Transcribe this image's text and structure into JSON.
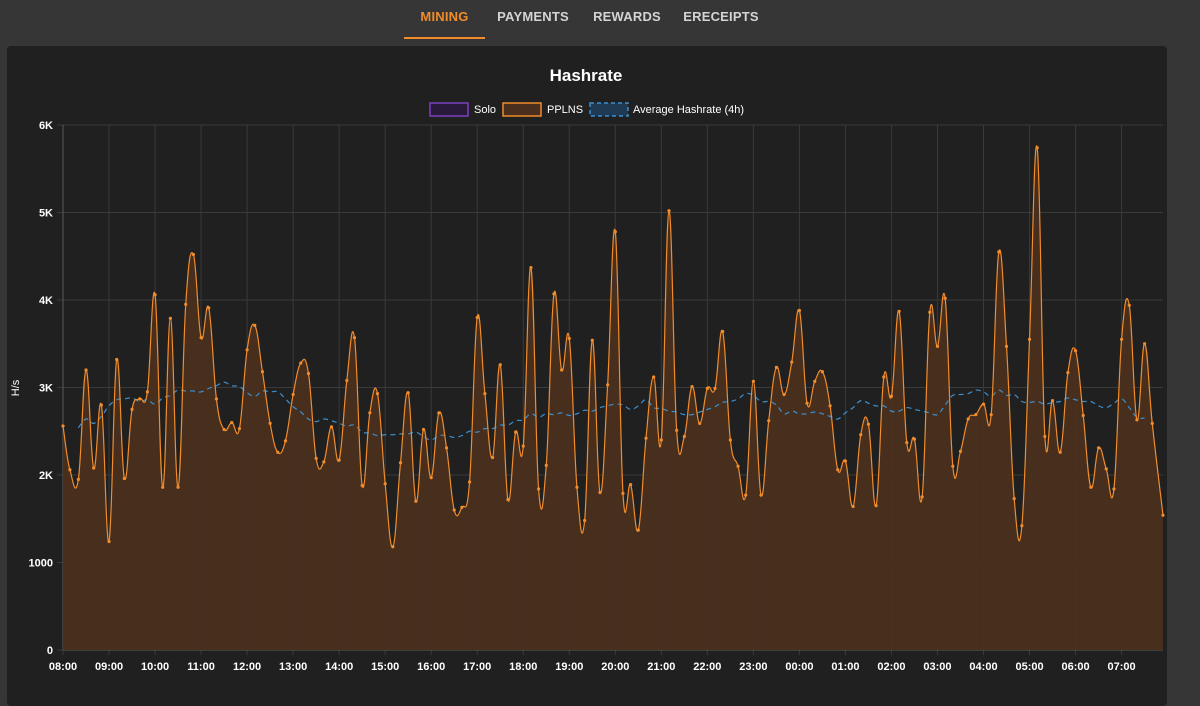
{
  "tabs": [
    {
      "label": "MINING",
      "active": true
    },
    {
      "label": "PAYMENTS",
      "active": false
    },
    {
      "label": "REWARDS",
      "active": false
    },
    {
      "label": "ERECEIPTS",
      "active": false
    }
  ],
  "colors": {
    "accent": "#f08c2c",
    "solo": "#7a3fbf",
    "pplns_line": "#f08c2c",
    "pplns_fill": "#4a2f1e",
    "average": "#3a8fd0"
  },
  "chart_data": {
    "type": "area",
    "title": "Hashrate",
    "ylabel": "H/s",
    "xlabel": "",
    "ylim": [
      0,
      6000
    ],
    "y_ticks": [
      {
        "value": 0,
        "label": "0"
      },
      {
        "value": 1000,
        "label": "1000"
      },
      {
        "value": 2000,
        "label": "2K"
      },
      {
        "value": 3000,
        "label": "3K"
      },
      {
        "value": 4000,
        "label": "4K"
      },
      {
        "value": 5000,
        "label": "5K"
      },
      {
        "value": 6000,
        "label": "6K"
      }
    ],
    "xlim": [
      0,
      1434
    ],
    "x_ticks": [
      {
        "value": 0,
        "label": "08:00"
      },
      {
        "value": 60,
        "label": "09:00"
      },
      {
        "value": 120,
        "label": "10:00"
      },
      {
        "value": 180,
        "label": "11:00"
      },
      {
        "value": 240,
        "label": "12:00"
      },
      {
        "value": 300,
        "label": "13:00"
      },
      {
        "value": 360,
        "label": "14:00"
      },
      {
        "value": 420,
        "label": "15:00"
      },
      {
        "value": 480,
        "label": "16:00"
      },
      {
        "value": 540,
        "label": "17:00"
      },
      {
        "value": 600,
        "label": "18:00"
      },
      {
        "value": 660,
        "label": "19:00"
      },
      {
        "value": 720,
        "label": "20:00"
      },
      {
        "value": 780,
        "label": "21:00"
      },
      {
        "value": 840,
        "label": "22:00"
      },
      {
        "value": 900,
        "label": "23:00"
      },
      {
        "value": 960,
        "label": "00:00"
      },
      {
        "value": 1020,
        "label": "01:00"
      },
      {
        "value": 1080,
        "label": "02:00"
      },
      {
        "value": 1140,
        "label": "03:00"
      },
      {
        "value": 1200,
        "label": "04:00"
      },
      {
        "value": 1260,
        "label": "05:00"
      },
      {
        "value": 1320,
        "label": "06:00"
      },
      {
        "value": 1380,
        "label": "07:00"
      }
    ],
    "grid": true,
    "legend_position": "top",
    "series": [
      {
        "name": "Solo",
        "color": "#7a3fbf",
        "points": []
      },
      {
        "name": "PPLNS",
        "color": "#f08c2c",
        "points": [
          [
            0,
            2560
          ],
          [
            9,
            2060
          ],
          [
            20,
            1950
          ],
          [
            30,
            3200
          ],
          [
            40,
            2080
          ],
          [
            50,
            2800
          ],
          [
            60,
            1240
          ],
          [
            70,
            3320
          ],
          [
            80,
            1960
          ],
          [
            90,
            2750
          ],
          [
            100,
            2870
          ],
          [
            110,
            2950
          ],
          [
            120,
            4060
          ],
          [
            130,
            1860
          ],
          [
            140,
            3790
          ],
          [
            150,
            1860
          ],
          [
            160,
            3950
          ],
          [
            170,
            4520
          ],
          [
            180,
            3570
          ],
          [
            190,
            3910
          ],
          [
            200,
            2870
          ],
          [
            210,
            2520
          ],
          [
            220,
            2600
          ],
          [
            230,
            2530
          ],
          [
            240,
            3430
          ],
          [
            250,
            3710
          ],
          [
            260,
            3180
          ],
          [
            270,
            2590
          ],
          [
            280,
            2260
          ],
          [
            290,
            2390
          ],
          [
            300,
            2920
          ],
          [
            310,
            3280
          ],
          [
            320,
            3160
          ],
          [
            330,
            2190
          ],
          [
            340,
            2150
          ],
          [
            350,
            2550
          ],
          [
            360,
            2170
          ],
          [
            370,
            3080
          ],
          [
            380,
            3570
          ],
          [
            390,
            1880
          ],
          [
            400,
            2710
          ],
          [
            410,
            2930
          ],
          [
            420,
            1900
          ],
          [
            430,
            1180
          ],
          [
            440,
            2140
          ],
          [
            450,
            2940
          ],
          [
            460,
            1700
          ],
          [
            470,
            2520
          ],
          [
            480,
            1970
          ],
          [
            490,
            2710
          ],
          [
            500,
            2310
          ],
          [
            510,
            1600
          ],
          [
            520,
            1630
          ],
          [
            530,
            1920
          ],
          [
            540,
            3800
          ],
          [
            550,
            2930
          ],
          [
            560,
            2200
          ],
          [
            570,
            3260
          ],
          [
            580,
            1720
          ],
          [
            590,
            2490
          ],
          [
            600,
            2330
          ],
          [
            610,
            4370
          ],
          [
            620,
            1840
          ],
          [
            630,
            2110
          ],
          [
            640,
            4070
          ],
          [
            650,
            3200
          ],
          [
            660,
            3560
          ],
          [
            670,
            1860
          ],
          [
            680,
            1480
          ],
          [
            690,
            3540
          ],
          [
            700,
            1800
          ],
          [
            710,
            3030
          ],
          [
            720,
            4780
          ],
          [
            730,
            1790
          ],
          [
            740,
            1890
          ],
          [
            750,
            1370
          ],
          [
            760,
            2420
          ],
          [
            770,
            3120
          ],
          [
            780,
            2400
          ],
          [
            790,
            5020
          ],
          [
            800,
            2510
          ],
          [
            810,
            2440
          ],
          [
            820,
            3010
          ],
          [
            830,
            2590
          ],
          [
            840,
            2990
          ],
          [
            850,
            2990
          ],
          [
            860,
            3640
          ],
          [
            870,
            2400
          ],
          [
            880,
            2100
          ],
          [
            890,
            1770
          ],
          [
            900,
            3070
          ],
          [
            910,
            1770
          ],
          [
            920,
            2620
          ],
          [
            930,
            3230
          ],
          [
            940,
            2920
          ],
          [
            950,
            3290
          ],
          [
            960,
            3880
          ],
          [
            970,
            2820
          ],
          [
            980,
            3070
          ],
          [
            990,
            3180
          ],
          [
            1000,
            2790
          ],
          [
            1010,
            2060
          ],
          [
            1020,
            2160
          ],
          [
            1030,
            1640
          ],
          [
            1040,
            2460
          ],
          [
            1050,
            2580
          ],
          [
            1060,
            1650
          ],
          [
            1070,
            3120
          ],
          [
            1080,
            2900
          ],
          [
            1090,
            3870
          ],
          [
            1100,
            2370
          ],
          [
            1110,
            2410
          ],
          [
            1120,
            1750
          ],
          [
            1130,
            3860
          ],
          [
            1140,
            3470
          ],
          [
            1150,
            4020
          ],
          [
            1160,
            2100
          ],
          [
            1170,
            2270
          ],
          [
            1180,
            2640
          ],
          [
            1190,
            2690
          ],
          [
            1200,
            2810
          ],
          [
            1210,
            2690
          ],
          [
            1220,
            4550
          ],
          [
            1230,
            3470
          ],
          [
            1240,
            1730
          ],
          [
            1250,
            1420
          ],
          [
            1260,
            3550
          ],
          [
            1270,
            5740
          ],
          [
            1280,
            2440
          ],
          [
            1290,
            2850
          ],
          [
            1300,
            2260
          ],
          [
            1310,
            3170
          ],
          [
            1320,
            3420
          ],
          [
            1330,
            2680
          ],
          [
            1340,
            1860
          ],
          [
            1350,
            2310
          ],
          [
            1360,
            2070
          ],
          [
            1370,
            1840
          ],
          [
            1380,
            3550
          ],
          [
            1390,
            3940
          ],
          [
            1400,
            2630
          ],
          [
            1410,
            3500
          ],
          [
            1420,
            2590
          ],
          [
            1434,
            1540
          ]
        ]
      },
      {
        "name": "Average Hashrate (4h)",
        "color": "#3a8fd0",
        "points": [
          [
            20,
            2540
          ],
          [
            30,
            2640
          ],
          [
            40,
            2590
          ],
          [
            50,
            2670
          ],
          [
            60,
            2790
          ],
          [
            70,
            2860
          ],
          [
            80,
            2870
          ],
          [
            90,
            2880
          ],
          [
            100,
            2840
          ],
          [
            110,
            2860
          ],
          [
            120,
            2810
          ],
          [
            130,
            2880
          ],
          [
            140,
            2910
          ],
          [
            150,
            2970
          ],
          [
            160,
            2960
          ],
          [
            170,
            2960
          ],
          [
            180,
            2950
          ],
          [
            190,
            2990
          ],
          [
            200,
            3020
          ],
          [
            210,
            3060
          ],
          [
            220,
            3020
          ],
          [
            230,
            3010
          ],
          [
            240,
            2940
          ],
          [
            250,
            2900
          ],
          [
            260,
            2960
          ],
          [
            270,
            2950
          ],
          [
            280,
            2950
          ],
          [
            290,
            2870
          ],
          [
            300,
            2780
          ],
          [
            310,
            2720
          ],
          [
            320,
            2640
          ],
          [
            330,
            2610
          ],
          [
            340,
            2640
          ],
          [
            350,
            2620
          ],
          [
            360,
            2590
          ],
          [
            370,
            2560
          ],
          [
            380,
            2570
          ],
          [
            390,
            2490
          ],
          [
            400,
            2480
          ],
          [
            410,
            2450
          ],
          [
            420,
            2460
          ],
          [
            430,
            2460
          ],
          [
            440,
            2470
          ],
          [
            450,
            2470
          ],
          [
            460,
            2490
          ],
          [
            470,
            2440
          ],
          [
            480,
            2400
          ],
          [
            490,
            2450
          ],
          [
            500,
            2450
          ],
          [
            510,
            2430
          ],
          [
            520,
            2450
          ],
          [
            530,
            2500
          ],
          [
            540,
            2490
          ],
          [
            550,
            2530
          ],
          [
            560,
            2530
          ],
          [
            570,
            2570
          ],
          [
            580,
            2570
          ],
          [
            590,
            2620
          ],
          [
            600,
            2630
          ],
          [
            610,
            2700
          ],
          [
            620,
            2660
          ],
          [
            630,
            2700
          ],
          [
            640,
            2690
          ],
          [
            650,
            2710
          ],
          [
            660,
            2680
          ],
          [
            670,
            2700
          ],
          [
            680,
            2740
          ],
          [
            690,
            2730
          ],
          [
            700,
            2770
          ],
          [
            710,
            2790
          ],
          [
            720,
            2810
          ],
          [
            730,
            2800
          ],
          [
            740,
            2750
          ],
          [
            750,
            2790
          ],
          [
            760,
            2860
          ],
          [
            770,
            2770
          ],
          [
            780,
            2760
          ],
          [
            790,
            2730
          ],
          [
            800,
            2720
          ],
          [
            810,
            2690
          ],
          [
            820,
            2690
          ],
          [
            830,
            2720
          ],
          [
            840,
            2750
          ],
          [
            850,
            2780
          ],
          [
            860,
            2830
          ],
          [
            870,
            2840
          ],
          [
            880,
            2870
          ],
          [
            890,
            2930
          ],
          [
            900,
            2910
          ],
          [
            910,
            2840
          ],
          [
            920,
            2840
          ],
          [
            930,
            2800
          ],
          [
            940,
            2700
          ],
          [
            950,
            2730
          ],
          [
            960,
            2700
          ],
          [
            970,
            2700
          ],
          [
            980,
            2720
          ],
          [
            990,
            2700
          ],
          [
            1000,
            2670
          ],
          [
            1010,
            2640
          ],
          [
            1020,
            2710
          ],
          [
            1030,
            2770
          ],
          [
            1040,
            2850
          ],
          [
            1050,
            2820
          ],
          [
            1060,
            2790
          ],
          [
            1070,
            2790
          ],
          [
            1080,
            2730
          ],
          [
            1090,
            2730
          ],
          [
            1100,
            2770
          ],
          [
            1110,
            2750
          ],
          [
            1120,
            2730
          ],
          [
            1130,
            2710
          ],
          [
            1140,
            2690
          ],
          [
            1150,
            2800
          ],
          [
            1160,
            2910
          ],
          [
            1170,
            2920
          ],
          [
            1180,
            2930
          ],
          [
            1190,
            2970
          ],
          [
            1200,
            2950
          ],
          [
            1210,
            2900
          ],
          [
            1220,
            2970
          ],
          [
            1230,
            2910
          ],
          [
            1240,
            2920
          ],
          [
            1250,
            2840
          ],
          [
            1260,
            2830
          ],
          [
            1270,
            2840
          ],
          [
            1280,
            2810
          ],
          [
            1290,
            2830
          ],
          [
            1300,
            2840
          ],
          [
            1310,
            2880
          ],
          [
            1320,
            2860
          ],
          [
            1330,
            2840
          ],
          [
            1340,
            2840
          ],
          [
            1350,
            2790
          ],
          [
            1360,
            2770
          ],
          [
            1370,
            2820
          ],
          [
            1380,
            2870
          ],
          [
            1390,
            2770
          ],
          [
            1400,
            2660
          ],
          [
            1410,
            2650
          ]
        ]
      }
    ]
  }
}
